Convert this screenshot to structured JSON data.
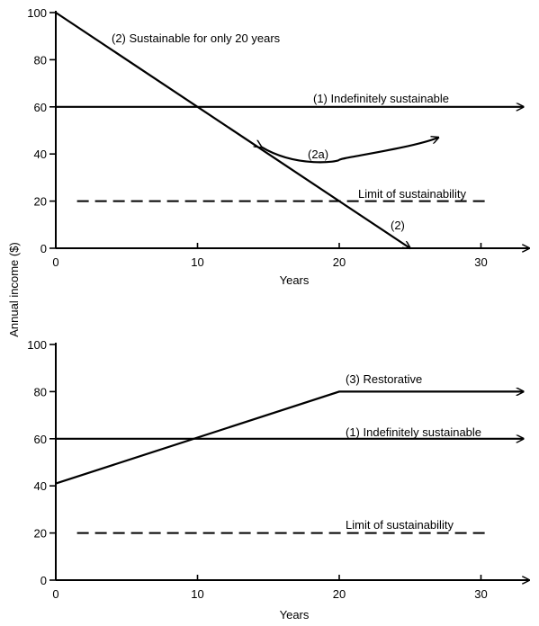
{
  "ylabel_shared": "Annual income ($)",
  "chart_data": [
    {
      "type": "line",
      "xlabel": "Years",
      "ylabel": "Annual income ($)",
      "xlim": [
        0,
        33
      ],
      "ylim": [
        0,
        100
      ],
      "xticks": [
        0,
        10,
        20,
        30
      ],
      "yticks": [
        0,
        20,
        40,
        60,
        80,
        100
      ],
      "grid": false,
      "series": [
        {
          "name": "(1) Indefinitely sustainable",
          "style": "solid-arrow",
          "x": [
            0,
            33
          ],
          "y": [
            60,
            60
          ]
        },
        {
          "name": "(2) Sustainable for only 20 years",
          "style": "solid-arrow",
          "x": [
            0,
            25
          ],
          "y": [
            100,
            0
          ]
        },
        {
          "name": "(2a)",
          "style": "curve-arrow",
          "x": [
            14.5,
            17,
            20,
            27
          ],
          "y": [
            43,
            37,
            37.5,
            47
          ]
        },
        {
          "name": "Limit of sustainability",
          "style": "dashed",
          "x": [
            1.5,
            30.5
          ],
          "y": [
            20,
            20
          ]
        }
      ],
      "annotations": [
        {
          "text": "(2) Sustainable for only 20 years"
        },
        {
          "text": "(1) Indefinitely sustainable"
        },
        {
          "text": "(2a)"
        },
        {
          "text": "Limit of sustainability"
        },
        {
          "text": "(2)"
        }
      ]
    },
    {
      "type": "line",
      "xlabel": "Years",
      "ylabel": "Annual income ($)",
      "xlim": [
        0,
        33
      ],
      "ylim": [
        0,
        100
      ],
      "xticks": [
        0,
        10,
        20,
        30
      ],
      "yticks": [
        0,
        20,
        40,
        60,
        80,
        100
      ],
      "grid": false,
      "series": [
        {
          "name": "(3) Restorative",
          "style": "solid-arrow",
          "x": [
            0,
            20,
            33
          ],
          "y": [
            41,
            80,
            80
          ]
        },
        {
          "name": "(1) Indefinitely sustainable",
          "style": "solid-arrow",
          "x": [
            0,
            33
          ],
          "y": [
            60,
            60
          ]
        },
        {
          "name": "Limit of sustainability",
          "style": "dashed",
          "x": [
            1.5,
            30.5
          ],
          "y": [
            20,
            20
          ]
        }
      ],
      "annotations": [
        {
          "text": "(3) Restorative"
        },
        {
          "text": "(1) Indefinitely sustainable"
        },
        {
          "text": "Limit of sustainability"
        }
      ]
    }
  ]
}
